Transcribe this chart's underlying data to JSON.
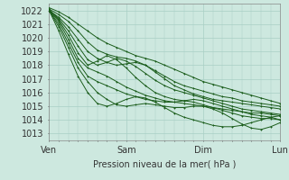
{
  "title": "",
  "xlabel": "Pression niveau de la mer( hPa )",
  "ylabel": "",
  "bg_color": "#cde8df",
  "grid_color": "#a8cfc5",
  "line_color": "#1a5c1a",
  "marker_color": "#1a5c1a",
  "ylim": [
    1012.5,
    1022.5
  ],
  "yticks": [
    1013,
    1014,
    1015,
    1016,
    1017,
    1018,
    1019,
    1020,
    1021,
    1022
  ],
  "xlim": [
    0,
    72
  ],
  "xtick_positions": [
    0,
    24,
    48,
    72
  ],
  "xtick_labels": [
    "Ven",
    "Sam",
    "Dim",
    "Lun"
  ],
  "line_width": 0.7,
  "marker_size": 1.8,
  "font_size": 7,
  "lines": [
    [
      1022.2,
      1021.9,
      1021.5,
      1021.0,
      1020.5,
      1020.0,
      1019.6,
      1019.3,
      1019.0,
      1018.7,
      1018.5,
      1018.3,
      1018.0,
      1017.7,
      1017.4,
      1017.1,
      1016.8,
      1016.6,
      1016.4,
      1016.2,
      1016.0,
      1015.8,
      1015.6,
      1015.4,
      1015.2
    ],
    [
      1022.1,
      1021.7,
      1021.2,
      1020.5,
      1019.7,
      1019.1,
      1018.8,
      1018.6,
      1018.5,
      1018.3,
      1018.0,
      1017.6,
      1017.2,
      1016.8,
      1016.5,
      1016.3,
      1016.1,
      1015.9,
      1015.7,
      1015.6,
      1015.4,
      1015.3,
      1015.2,
      1015.1,
      1015.0
    ],
    [
      1022.0,
      1021.5,
      1020.8,
      1019.9,
      1019.0,
      1018.5,
      1018.2,
      1018.0,
      1018.1,
      1018.2,
      1018.0,
      1017.5,
      1017.0,
      1016.5,
      1016.2,
      1015.9,
      1015.7,
      1015.5,
      1015.4,
      1015.3,
      1015.2,
      1015.1,
      1015.0,
      1014.9,
      1014.8
    ],
    [
      1022.0,
      1021.4,
      1020.5,
      1019.4,
      1018.4,
      1018.0,
      1018.2,
      1018.5,
      1018.3,
      1017.9,
      1017.4,
      1016.9,
      1016.5,
      1016.2,
      1016.0,
      1015.8,
      1015.6,
      1015.4,
      1015.2,
      1015.0,
      1014.8,
      1014.7,
      1014.6,
      1014.5,
      1014.4
    ],
    [
      1022.1,
      1021.3,
      1020.2,
      1018.9,
      1018.0,
      1018.3,
      1018.7,
      1018.4,
      1017.8,
      1017.1,
      1016.5,
      1016.0,
      1015.7,
      1015.5,
      1015.4,
      1015.3,
      1015.1,
      1014.9,
      1014.7,
      1014.5,
      1014.3,
      1014.2,
      1014.1,
      1014.1,
      1014.0
    ],
    [
      1022.0,
      1021.2,
      1019.9,
      1018.5,
      1017.8,
      1017.5,
      1017.2,
      1016.8,
      1016.4,
      1016.1,
      1015.8,
      1015.6,
      1015.4,
      1015.3,
      1015.2,
      1015.1,
      1015.0,
      1014.9,
      1014.8,
      1014.7,
      1014.6,
      1014.5,
      1014.5,
      1014.4,
      1014.3
    ],
    [
      1022.0,
      1021.0,
      1019.6,
      1018.2,
      1017.2,
      1016.8,
      1016.5,
      1016.2,
      1015.9,
      1015.7,
      1015.5,
      1015.4,
      1015.3,
      1015.3,
      1015.4,
      1015.5,
      1015.4,
      1015.2,
      1015.0,
      1014.8,
      1014.6,
      1014.4,
      1014.3,
      1014.2,
      1014.0
    ],
    [
      1022.0,
      1020.8,
      1019.3,
      1017.8,
      1016.8,
      1016.0,
      1015.5,
      1015.1,
      1015.0,
      1015.1,
      1015.2,
      1015.1,
      1015.0,
      1014.9,
      1014.9,
      1015.0,
      1015.0,
      1014.8,
      1014.5,
      1014.1,
      1013.7,
      1013.4,
      1013.3,
      1013.5,
      1013.8
    ],
    [
      1022.0,
      1020.5,
      1018.8,
      1017.2,
      1016.0,
      1015.2,
      1015.0,
      1015.2,
      1015.5,
      1015.7,
      1015.6,
      1015.3,
      1014.9,
      1014.5,
      1014.2,
      1014.0,
      1013.8,
      1013.6,
      1013.5,
      1013.5,
      1013.6,
      1013.8,
      1014.0,
      1014.2,
      1014.3
    ]
  ]
}
